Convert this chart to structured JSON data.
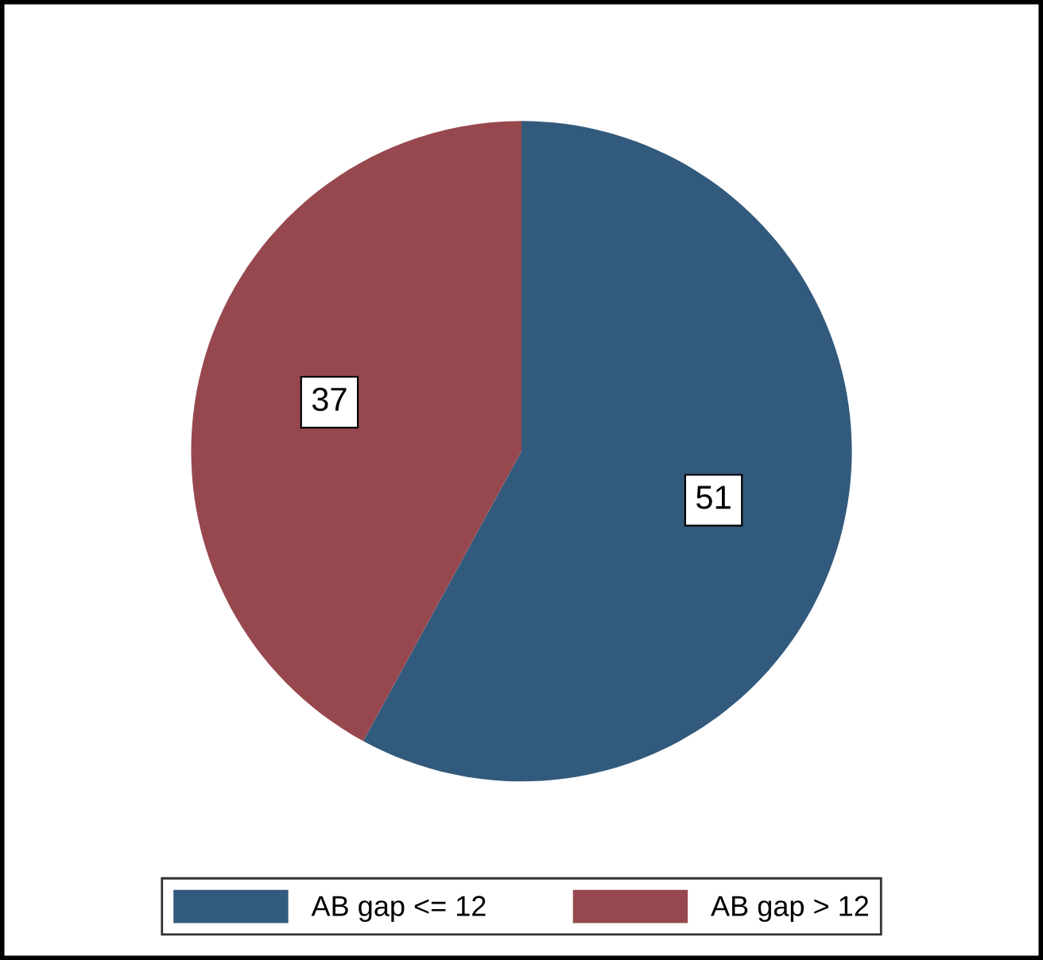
{
  "chart_data": {
    "type": "pie",
    "categories": [
      "AB gap <= 12",
      "AB gap > 12"
    ],
    "values": [
      51,
      37
    ],
    "colors": [
      "#325a7c",
      "#97484f"
    ],
    "data_labels": true,
    "legend": "bottom"
  }
}
